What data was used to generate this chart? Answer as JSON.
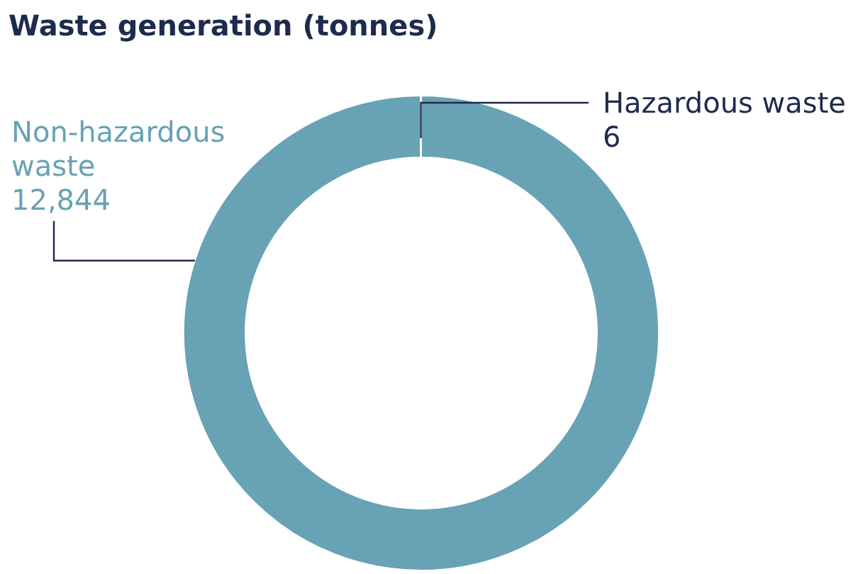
{
  "chart_data": {
    "type": "donut",
    "title": "Waste generation (tonnes)",
    "categories": [
      "Non-hazardous waste",
      "Hazardous waste"
    ],
    "values": [
      12844,
      6
    ],
    "colors": [
      "#68a2b5",
      "#1d2b4c"
    ],
    "value_labels": [
      "12,844",
      "6"
    ],
    "legend": false
  }
}
